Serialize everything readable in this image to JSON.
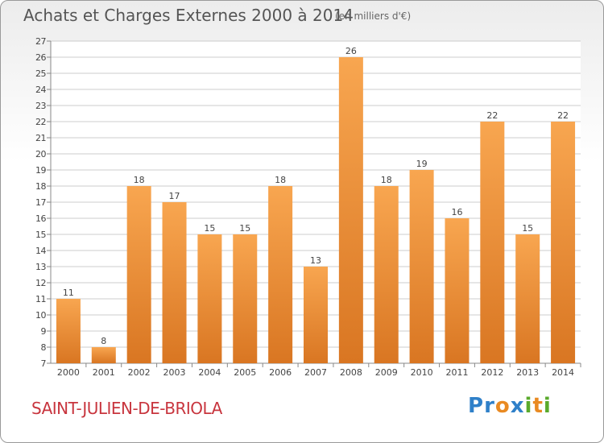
{
  "title": "Achats et Charges Externes 2000 à 2014",
  "unit": "(en milliers d'€)",
  "city": "SAINT-JULIEN-DE-BRIOLA",
  "logo": {
    "letters": [
      {
        "ch": "P",
        "color": "#2f80c9"
      },
      {
        "ch": "r",
        "color": "#2f80c9"
      },
      {
        "ch": "o",
        "color": "#e98a22"
      },
      {
        "ch": "x",
        "color": "#2f80c9"
      },
      {
        "ch": "i",
        "color": "#5aaa2c"
      },
      {
        "ch": "t",
        "color": "#e98a22"
      },
      {
        "ch": "i",
        "color": "#5aaa2c"
      }
    ]
  },
  "colors": {
    "bar_light": "#f8a650",
    "bar_dark": "#d97622",
    "grid": "#cccccc"
  },
  "chart_data": {
    "type": "bar",
    "categories": [
      "2000",
      "2001",
      "2002",
      "2003",
      "2004",
      "2005",
      "2006",
      "2007",
      "2008",
      "2009",
      "2010",
      "2011",
      "2012",
      "2013",
      "2014"
    ],
    "values": [
      11,
      8,
      18,
      17,
      15,
      15,
      18,
      13,
      26,
      18,
      19,
      16,
      22,
      15,
      22
    ],
    "ylim": [
      7,
      27
    ],
    "yticks": [
      7,
      8,
      9,
      10,
      11,
      12,
      13,
      14,
      15,
      16,
      17,
      18,
      19,
      20,
      21,
      22,
      23,
      24,
      25,
      26,
      27
    ],
    "grid": true,
    "data_labels": true
  }
}
